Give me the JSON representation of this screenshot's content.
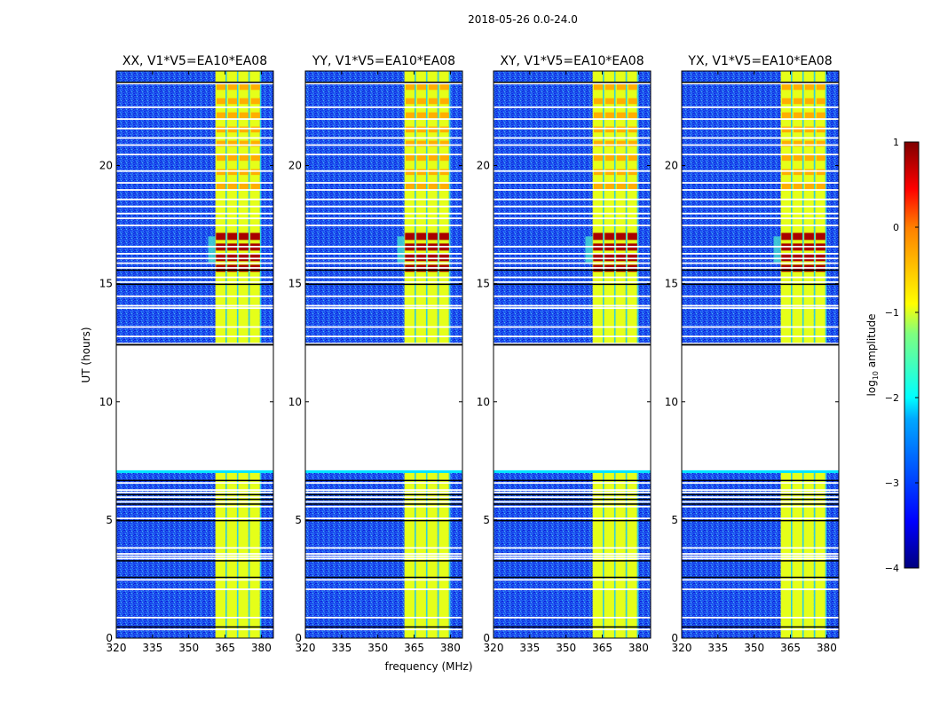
{
  "figure": {
    "suptitle": "2018-05-26 0.0-24.0",
    "xlabel": "frequency (MHz)",
    "ylabel": "UT (hours)"
  },
  "colorbar": {
    "label": "log",
    "label_sub": "10",
    "label_rest": " amplitude",
    "range": [
      -4,
      1
    ],
    "ticks": [
      1,
      0,
      -1,
      -2,
      -3,
      -4
    ],
    "tick_labels": [
      "1",
      "0",
      "−1",
      "−2",
      "−3",
      "−4"
    ],
    "colormap": [
      "#00007f",
      "#0000ff",
      "#007fff",
      "#00ffff",
      "#7fff7f",
      "#ffff00",
      "#ff7f00",
      "#ff0000",
      "#7f0000"
    ]
  },
  "chart_data": [
    {
      "type": "heatmap",
      "title": "XX, V1*V5=EA10*EA08",
      "xlim": [
        320,
        385
      ],
      "ylim": [
        0,
        24
      ],
      "xticks": [
        320,
        335,
        350,
        365,
        380
      ],
      "yticks": [
        0,
        5,
        10,
        15,
        20
      ],
      "ytick_labels": [
        "0",
        "5",
        "10",
        "15",
        "20"
      ],
      "data_gap_hours": [
        7.1,
        12.4
      ],
      "rfi_band_mhz": [
        361,
        380
      ],
      "rfi_peak_hours": [
        15.5,
        17.2
      ],
      "approx_log10_amplitude": {
        "background": -3,
        "rfi_band": -1,
        "rfi_peak": 0.8
      }
    },
    {
      "type": "heatmap",
      "title": "YY, V1*V5=EA10*EA08",
      "xlim": [
        320,
        385
      ],
      "ylim": [
        0,
        24
      ],
      "xticks": [
        320,
        335,
        350,
        365,
        380
      ],
      "yticks": [
        0,
        5,
        10,
        15,
        20
      ],
      "ytick_labels": [
        "0",
        "5",
        "10",
        "15",
        "20"
      ],
      "data_gap_hours": [
        7.1,
        12.4
      ],
      "rfi_band_mhz": [
        361,
        380
      ],
      "rfi_peak_hours": [
        15.5,
        17.2
      ],
      "approx_log10_amplitude": {
        "background": -3,
        "rfi_band": -1,
        "rfi_peak": 0.8
      }
    },
    {
      "type": "heatmap",
      "title": "XY, V1*V5=EA10*EA08",
      "xlim": [
        320,
        385
      ],
      "ylim": [
        0,
        24
      ],
      "xticks": [
        320,
        335,
        350,
        365,
        380
      ],
      "yticks": [
        0,
        5,
        10,
        15,
        20
      ],
      "ytick_labels": [
        "0",
        "5",
        "10",
        "15",
        "20"
      ],
      "data_gap_hours": [
        7.1,
        12.4
      ],
      "rfi_band_mhz": [
        361,
        380
      ],
      "rfi_peak_hours": [
        15.5,
        17.2
      ],
      "approx_log10_amplitude": {
        "background": -3,
        "rfi_band": -1,
        "rfi_peak": 0.8
      }
    },
    {
      "type": "heatmap",
      "title": "YX, V1*V5=EA10*EA08",
      "xlim": [
        320,
        385
      ],
      "ylim": [
        0,
        24
      ],
      "xticks": [
        320,
        335,
        350,
        365,
        380
      ],
      "yticks": [
        0,
        5,
        10,
        15,
        20
      ],
      "ytick_labels": [
        "0",
        "5",
        "10",
        "15",
        "20"
      ],
      "data_gap_hours": [
        7.1,
        12.4
      ],
      "rfi_band_mhz": [
        361,
        380
      ],
      "rfi_peak_hours": [
        15.5,
        17.2
      ],
      "approx_log10_amplitude": {
        "background": -3,
        "rfi_band": -1,
        "rfi_peak": 0.8
      }
    }
  ]
}
